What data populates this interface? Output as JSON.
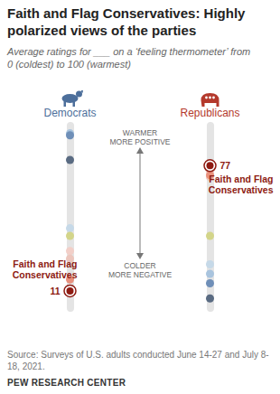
{
  "chart_data": {
    "type": "scatter",
    "title": "Faith and Flag Conservatives: Highly polarized views of the parties",
    "subtitle": "Average ratings for ___ on a ‘feeling thermometer’ from 0 (coldest) to 100 (warmest)",
    "categories": [
      "Democrats",
      "Republicans"
    ],
    "ylim": [
      0,
      100
    ],
    "tick_labels": "x",
    "annotations": {
      "top": [
        "WARMER",
        "MORE POSITIVE"
      ],
      "bottom": [
        "COLDER",
        "MORE NEGATIVE"
      ]
    },
    "series": [
      {
        "color": "#a9c4de",
        "values": [
          94,
          20
        ]
      },
      {
        "color": "#6f8fb8",
        "values": [
          93,
          15
        ]
      },
      {
        "color": "#5a6b82",
        "values": [
          80,
          7
        ]
      },
      {
        "color": "#c6d9e8",
        "values": [
          44,
          25
        ]
      },
      {
        "color": "#d3d58a",
        "values": [
          40,
          40
        ]
      },
      {
        "color": "#f2cfc8",
        "values": [
          32,
          74
        ]
      },
      {
        "color": "#ecc6bd",
        "values": [
          28,
          71
        ]
      },
      {
        "color": "#e8907d",
        "values": [
          17,
          72
        ]
      },
      {
        "name": "Faith and Flag Conservatives",
        "color": "#8e1b12",
        "marker": "ring",
        "data_labels": true,
        "values": [
          11,
          77
        ]
      }
    ]
  },
  "source": "Source: Surveys of U.S. adults conducted June 14-27 and July 8-18, 2021.",
  "credit": "PEW RESEARCH CENTER"
}
